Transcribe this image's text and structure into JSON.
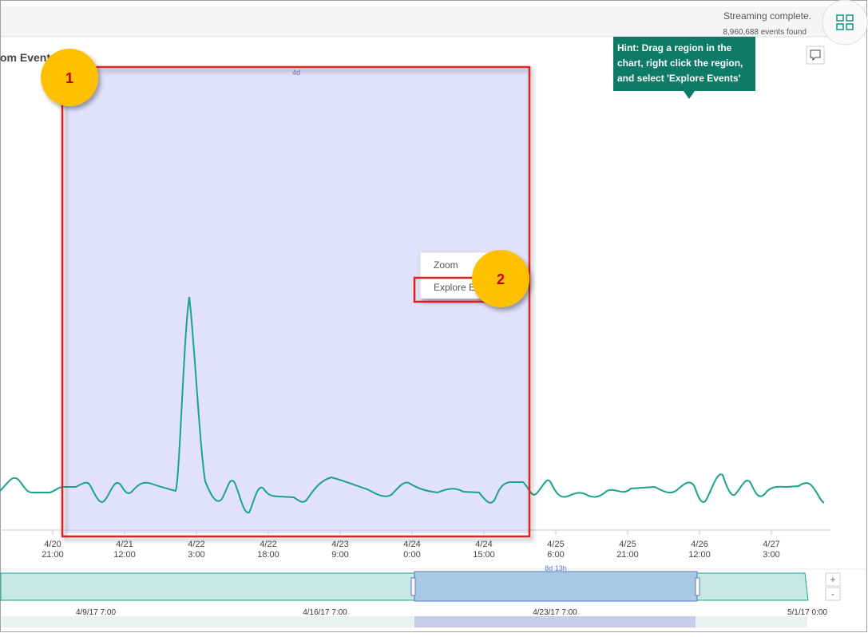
{
  "header": {
    "status": "Streaming complete.",
    "count": "8,960,688 events found"
  },
  "chart": {
    "title": "om Events",
    "selection_label": "4d",
    "x_ticks": [
      {
        "date": "4/20",
        "time": "21:00"
      },
      {
        "date": "4/21",
        "time": "12:00"
      },
      {
        "date": "4/22",
        "time": "3:00"
      },
      {
        "date": "4/22",
        "time": "18:00"
      },
      {
        "date": "4/23",
        "time": "9:00"
      },
      {
        "date": "4/24",
        "time": "0:00"
      },
      {
        "date": "4/24",
        "time": "15:00"
      },
      {
        "date": "4/25",
        "time": "6:00"
      },
      {
        "date": "4/25",
        "time": "21:00"
      },
      {
        "date": "4/26",
        "time": "12:00"
      },
      {
        "date": "4/27",
        "time": "3:00"
      }
    ]
  },
  "hint": [
    "Hint: Drag a region in the",
    "chart, right click the region,",
    "and select 'Explore Events'"
  ],
  "context_menu": {
    "items": [
      "Zoom",
      "Explore Ev"
    ]
  },
  "callouts": [
    "1",
    "2"
  ],
  "timeline": {
    "brush_label": "8d 13h",
    "ticks": [
      "4/9/17 7:00",
      "4/16/17 7:00",
      "4/23/17 7:00",
      "5/1/17 0:00"
    ],
    "zoom": [
      "+",
      "-"
    ]
  }
}
